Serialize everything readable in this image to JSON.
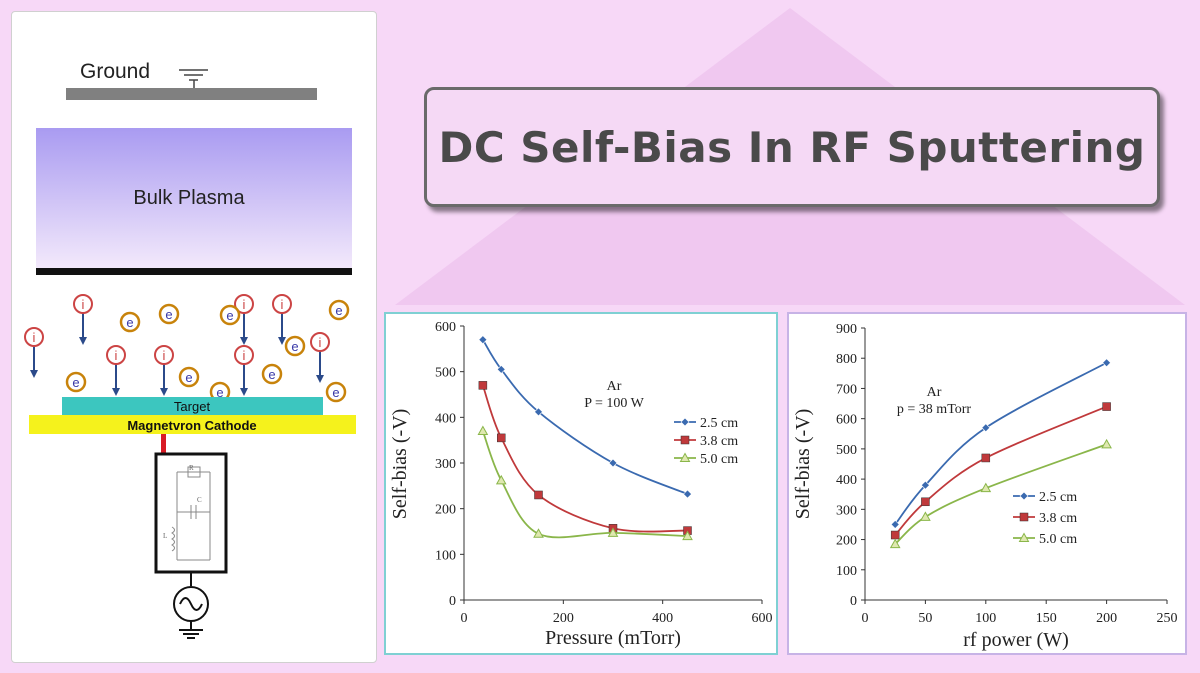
{
  "title": "DC Self-Bias In RF Sputtering",
  "diagram": {
    "ground_label": "Ground",
    "plasma_label": "Bulk Plasma",
    "target_label": "Target",
    "cathode_label": "Magnetvron Cathode",
    "ion_symbol": "i",
    "electron_symbol": "e",
    "circuit_labels": {
      "r": "R",
      "c": "C",
      "l": "L"
    },
    "colors": {
      "plasma_top": "#a99bf1",
      "plasma_bottom": "#f3e9fb",
      "target": "#3cc6bf",
      "cathode": "#f5f21c",
      "electron_ring": "#c8830b",
      "ion_ring": "#c44"
    }
  },
  "chart_data": [
    {
      "type": "line",
      "title": "",
      "annotation": [
        "Ar",
        "P = 100 W"
      ],
      "xlabel": "Pressure (mTorr)",
      "ylabel": "Self-bias (-V)",
      "xlim": [
        0,
        600
      ],
      "ylim": [
        0,
        600
      ],
      "xticks": [
        "0",
        "200",
        "400",
        "600"
      ],
      "yticks": [
        "0",
        "100",
        "200",
        "300",
        "400",
        "500",
        "600"
      ],
      "grid": false,
      "legend_position": "right",
      "series": [
        {
          "name": "2.5 cm",
          "marker": "diamond",
          "color": "#3a6ab0",
          "points": [
            [
              38,
              570
            ],
            [
              75,
              505
            ],
            [
              150,
              412
            ],
            [
              300,
              300
            ],
            [
              450,
              232
            ]
          ]
        },
        {
          "name": "3.8 cm",
          "marker": "square",
          "color": "#c0393b",
          "points": [
            [
              38,
              470
            ],
            [
              75,
              355
            ],
            [
              150,
              230
            ],
            [
              300,
              157
            ],
            [
              450,
              152
            ]
          ]
        },
        {
          "name": "5.0 cm",
          "marker": "triangle",
          "color": "#8ab64a",
          "points": [
            [
              38,
              370
            ],
            [
              75,
              262
            ],
            [
              150,
              145
            ],
            [
              300,
              147
            ],
            [
              450,
              140
            ]
          ]
        }
      ]
    },
    {
      "type": "line",
      "title": "",
      "annotation": [
        "Ar",
        "p = 38 mTorr"
      ],
      "xlabel": "rf power (W)",
      "ylabel": "Self-bias (-V)",
      "xlim": [
        0,
        250
      ],
      "ylim": [
        0,
        900
      ],
      "xticks": [
        "0",
        "50",
        "100",
        "150",
        "200",
        "250"
      ],
      "yticks": [
        "0",
        "100",
        "200",
        "300",
        "400",
        "500",
        "600",
        "700",
        "800",
        "900"
      ],
      "grid": false,
      "legend_position": "center-left",
      "series": [
        {
          "name": "2.5 cm",
          "marker": "diamond",
          "color": "#3a6ab0",
          "points": [
            [
              25,
              250
            ],
            [
              50,
              380
            ],
            [
              100,
              570
            ],
            [
              200,
              785
            ]
          ]
        },
        {
          "name": "3.8 cm",
          "marker": "square",
          "color": "#c0393b",
          "points": [
            [
              25,
              215
            ],
            [
              50,
              325
            ],
            [
              100,
              470
            ],
            [
              200,
              640
            ]
          ]
        },
        {
          "name": "5.0 cm",
          "marker": "triangle",
          "color": "#8ab64a",
          "points": [
            [
              25,
              185
            ],
            [
              50,
              275
            ],
            [
              100,
              370
            ],
            [
              200,
              515
            ]
          ]
        }
      ]
    }
  ]
}
